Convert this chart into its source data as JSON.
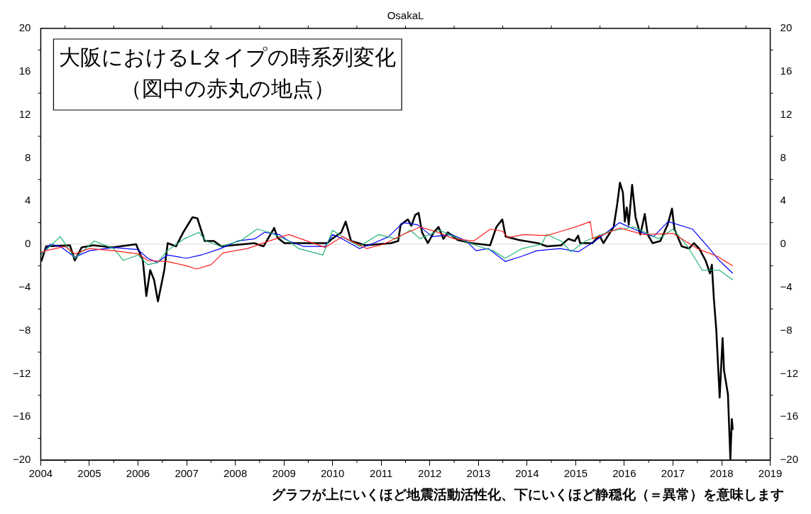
{
  "chart_data": {
    "type": "line",
    "title": "OsakaL",
    "annotations": [
      "大阪におけるLタイプの時系列変化",
      "（図中の赤丸の地点）",
      "グラフが上にいくほど地震活動活性化、下にいくほど静穏化（＝異常）を意味します"
    ],
    "xlim": [
      2004,
      2019
    ],
    "xticks": [
      2004,
      2005,
      2006,
      2007,
      2008,
      2009,
      2010,
      2011,
      2012,
      2013,
      2014,
      2015,
      2016,
      2017,
      2018,
      2019
    ],
    "ylim": [
      -20,
      20
    ],
    "yticks": [
      -20,
      -16,
      -12,
      -8,
      -4,
      0,
      4,
      8,
      12,
      16,
      20
    ],
    "y2lim": [
      -20,
      20
    ],
    "y2ticks": [
      -20,
      -16,
      -12,
      -8,
      -4,
      0,
      4,
      8,
      12,
      16,
      20
    ],
    "grid": false,
    "legend": false,
    "marker": "none",
    "line_style": "solid",
    "ref_lines": [
      {
        "axis": "y",
        "value": 0,
        "color": "#d9d9d9"
      }
    ],
    "series": [
      {
        "color": "#ff2020",
        "x": [
          2004.0,
          2004.1,
          2004.5,
          2004.7,
          2005.0,
          2005.5,
          2006.0,
          2006.2,
          2006.6,
          2007.0,
          2007.2,
          2007.5,
          2007.75,
          2008.25,
          2008.7,
          2009.1,
          2009.35,
          2009.85,
          2010.2,
          2010.7,
          2011.05,
          2011.45,
          2011.8,
          2012.1,
          2012.5,
          2012.9,
          2013.25,
          2013.5,
          2013.6,
          2013.93,
          2014.4,
          2014.7,
          2015.0,
          2015.3,
          2015.35,
          2015.9,
          2016.4,
          2017.0,
          2017.5,
          2017.9,
          2018.23
        ],
        "values": [
          -0.8,
          -0.6,
          -0.2,
          -0.9,
          -0.4,
          -0.6,
          -0.9,
          -1.5,
          -1.6,
          -2.0,
          -2.3,
          -1.9,
          -0.8,
          -0.4,
          0.3,
          0.9,
          0.5,
          -0.3,
          0.7,
          -0.4,
          0,
          0.9,
          1.6,
          1.2,
          0.5,
          0.3,
          1.4,
          1.2,
          0.6,
          0.9,
          0.8,
          1.2,
          1.6,
          2.1,
          0.5,
          1.5,
          0.9,
          1.0,
          -0.4,
          -1.1,
          -2.0
        ]
      },
      {
        "color": "#22b573",
        "x": [
          2004.0,
          2004.4,
          2004.7,
          2005.1,
          2005.5,
          2005.7,
          2006.0,
          2006.2,
          2006.4,
          2006.6,
          2006.95,
          2007.25,
          2007.4,
          2007.7,
          2008.1,
          2008.45,
          2008.7,
          2009.1,
          2009.3,
          2009.8,
          2010.0,
          2010.2,
          2010.55,
          2010.95,
          2011.3,
          2011.6,
          2011.8,
          2012.2,
          2012.6,
          2013.0,
          2013.3,
          2013.55,
          2013.9,
          2014.3,
          2014.4,
          2014.7,
          2014.9,
          2015.2,
          2015.7,
          2016.2,
          2016.7,
          2017.0,
          2017.3,
          2017.6,
          2017.95,
          2018.23
        ],
        "values": [
          -1.0,
          0.7,
          -1.3,
          0.3,
          -0.4,
          -1.5,
          -1.0,
          -1.9,
          -1.7,
          -0.6,
          0.5,
          1.1,
          0.3,
          -0.2,
          0.3,
          1.4,
          1.1,
          0.3,
          -0.4,
          -1.0,
          1.3,
          0.7,
          -0.2,
          0.9,
          0.5,
          1.3,
          0.5,
          1.3,
          0.5,
          -0.2,
          -0.6,
          -1.3,
          -0.4,
          0,
          0.9,
          0.3,
          -0.7,
          0.3,
          1.2,
          1.6,
          0.5,
          1.4,
          -0.2,
          -2.4,
          -2.4,
          -3.3
        ]
      },
      {
        "color": "#0000ff",
        "x": [
          2004.0,
          2004.2,
          2004.4,
          2004.7,
          2005.0,
          2005.5,
          2006.0,
          2006.2,
          2006.4,
          2006.6,
          2007.0,
          2007.3,
          2007.7,
          2008.05,
          2008.4,
          2008.6,
          2008.9,
          2009.1,
          2009.4,
          2009.85,
          2010.0,
          2010.2,
          2010.55,
          2010.85,
          2011.15,
          2011.45,
          2011.75,
          2012.05,
          2012.45,
          2012.75,
          2012.95,
          2013.2,
          2013.55,
          2013.9,
          2014.2,
          2014.68,
          2015.05,
          2015.4,
          2015.9,
          2016.3,
          2016.6,
          2016.9,
          2017.4,
          2017.75,
          2017.95,
          2018.23
        ],
        "values": [
          -1.0,
          0.0,
          -0.2,
          -1.2,
          -0.6,
          -0.3,
          -0.5,
          -1.3,
          -1.7,
          -1.0,
          -1.3,
          -1.0,
          -0.4,
          0.3,
          0.5,
          1.1,
          0.9,
          0.3,
          -0.2,
          -0.2,
          0.9,
          0.5,
          -0.4,
          0.1,
          0.7,
          2.0,
          1.8,
          0.7,
          0.9,
          0.3,
          -0.6,
          -0.4,
          -1.6,
          -1.1,
          -0.6,
          -0.4,
          -0.7,
          0.3,
          2.0,
          1.2,
          0.7,
          2.1,
          1.4,
          -0.4,
          -1.5,
          -2.7
        ]
      },
      {
        "color": "#000000",
        "x": [
          2004.01,
          2004.11,
          2004.6,
          2004.7,
          2004.84,
          2005.08,
          2005.47,
          2005.96,
          2006.1,
          2006.17,
          2006.25,
          2006.33,
          2006.41,
          2006.54,
          2006.61,
          2006.78,
          2006.93,
          2007.12,
          2007.22,
          2007.37,
          2007.56,
          2007.71,
          2008.39,
          2008.58,
          2008.8,
          2008.87,
          2009.01,
          2009.89,
          2009.99,
          2010.18,
          2010.27,
          2010.38,
          2010.68,
          2011.2,
          2011.35,
          2011.4,
          2011.55,
          2011.62,
          2011.7,
          2011.77,
          2011.84,
          2011.96,
          2012.08,
          2012.18,
          2012.28,
          2012.37,
          2012.57,
          2012.86,
          2013.24,
          2013.37,
          2013.49,
          2013.56,
          2013.83,
          2014.22,
          2014.41,
          2014.7,
          2014.85,
          2014.98,
          2015.05,
          2015.09,
          2015.34,
          2015.49,
          2015.57,
          2015.78,
          2015.85,
          2015.91,
          2015.97,
          2016.01,
          2016.05,
          2016.09,
          2016.16,
          2016.23,
          2016.33,
          2016.42,
          2016.48,
          2016.58,
          2016.74,
          2016.89,
          2016.98,
          2017.03,
          2017.18,
          2017.33,
          2017.43,
          2017.54,
          2017.67,
          2017.76,
          2017.8,
          2017.84,
          2017.89,
          2017.96,
          2018.02,
          2018.05,
          2018.13,
          2018.18,
          2018.21,
          2018.23
        ],
        "values": [
          -1.6,
          -0.2,
          -0.1,
          -1.5,
          -0.3,
          -0.1,
          -0.3,
          0,
          -1.5,
          -4.8,
          -2.4,
          -3.3,
          -5.3,
          -2.4,
          0.1,
          -0.2,
          1.1,
          2.5,
          2.4,
          0.3,
          0.3,
          -0.2,
          0.1,
          -0.2,
          1.5,
          0.6,
          0.1,
          0.1,
          0.5,
          1.1,
          2.1,
          0.3,
          -0.1,
          0.1,
          0.3,
          1.8,
          2.3,
          1.7,
          2.7,
          2.9,
          1.1,
          0.1,
          1.1,
          1.6,
          0.5,
          1.1,
          0.4,
          0.1,
          -0.1,
          1.6,
          2.3,
          0.7,
          0.4,
          0.1,
          -0.2,
          -0.1,
          0.5,
          0.3,
          0.8,
          0.1,
          0.1,
          0.8,
          0.1,
          1.6,
          3.6,
          5.7,
          4.8,
          2.1,
          3.4,
          1.8,
          5.5,
          2.5,
          0.9,
          2.8,
          0.9,
          0.1,
          0.3,
          1.8,
          3.3,
          1.4,
          -0.2,
          -0.4,
          0.1,
          -0.4,
          -1.5,
          -2.7,
          -1.9,
          -5.0,
          -7.9,
          -14.2,
          -8.7,
          -11.7,
          -13.9,
          -19.9,
          -16.2,
          -17.2
        ]
      }
    ]
  }
}
